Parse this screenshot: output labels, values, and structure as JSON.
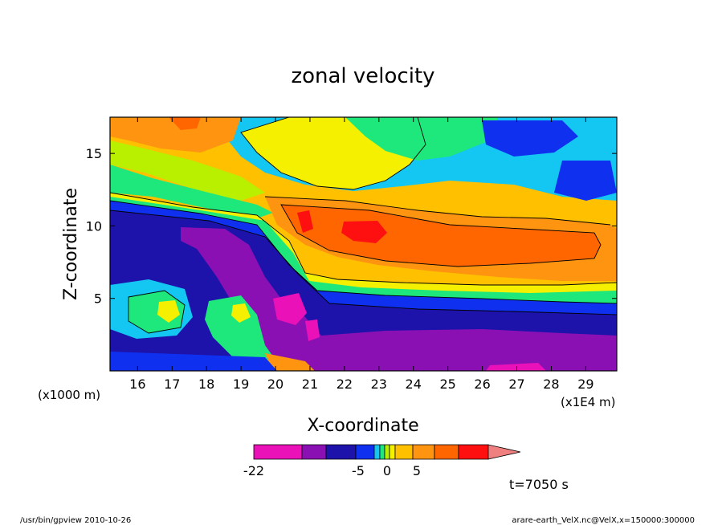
{
  "chart_data": {
    "type": "heatmap",
    "title": "zonal velocity",
    "xlabel": "X-coordinate",
    "ylabel": "Z-coordinate",
    "x_unit_left": "(x1000 m)",
    "x_unit_right": "(x1E4 m)",
    "x_ticks": [
      "16",
      "17",
      "18",
      "19",
      "20",
      "21",
      "22",
      "23",
      "24",
      "25",
      "26",
      "27",
      "28",
      "29"
    ],
    "y_ticks": [
      "5",
      "10",
      "15"
    ],
    "xlim": [
      15.2,
      29.9
    ],
    "ylim": [
      0,
      17.5
    ],
    "colorbar": {
      "colors": [
        "#ea11b9",
        "#8a10b4",
        "#1d12aa",
        "#1030f0",
        "#14c6f2",
        "#1ee87c",
        "#b8f000",
        "#f5f000",
        "#ffc000",
        "#ff9410",
        "#ff6600",
        "#ff1010",
        "#f08080"
      ],
      "labels": [
        "-22",
        "-5",
        "0",
        "5"
      ]
    },
    "time_label": "t=7050 s",
    "footer_left": "/usr/bin/gpview   2010-10-26",
    "footer_right": "arare-earth_VelX.nc@VelX,x=150000:300000"
  }
}
